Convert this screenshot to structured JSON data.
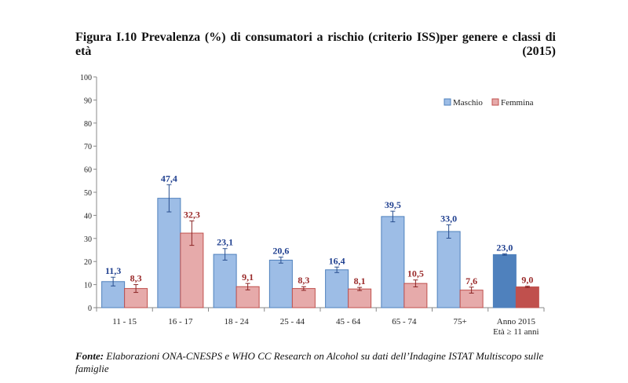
{
  "title": {
    "line1": "Figura I.10 Prevalenza (%) di consumatori a rischio (criterio ISS)per genere e classi di",
    "line2_left": "età",
    "line2_right": "(2015)"
  },
  "source": {
    "label": "Fonte:",
    "text": " Elaborazioni ONA-CNESPS e WHO CC Research on Alcohol su dati dell’Indagine ISTAT Multiscopo sulle famiglie"
  },
  "colors": {
    "maschio": "#9dbde6",
    "maschio_total": "#4f81bd",
    "maschio_label": "#1f3f8f",
    "femmina": "#e6aaaa",
    "femmina_total": "#c0504d",
    "femmina_label": "#9a2a2a"
  },
  "chart_data": {
    "type": "bar",
    "categories": [
      "11 - 15",
      "16 - 17",
      "18 - 24",
      "25 - 44",
      "45 - 64",
      "65 - 74",
      "75+",
      "Anno 2015\nEtà ≥ 11 anni"
    ],
    "series": [
      {
        "name": "Maschio",
        "values": [
          11.3,
          47.4,
          23.1,
          20.6,
          16.4,
          39.5,
          33.0,
          23.0
        ],
        "labels": [
          "11,3",
          "47,4",
          "23,1",
          "20,6",
          "16,4",
          "39,5",
          "33,0",
          "23,0"
        ],
        "err_low": [
          9.4,
          41.5,
          20.6,
          19.3,
          15.2,
          37.2,
          30.1,
          22.7
        ],
        "err_high": [
          13.2,
          53.3,
          25.6,
          21.9,
          17.6,
          41.8,
          35.9,
          23.3
        ]
      },
      {
        "name": "Femmina",
        "values": [
          8.3,
          32.3,
          9.1,
          8.3,
          8.1,
          10.5,
          7.6,
          9.0
        ],
        "labels": [
          "8,3",
          "32,3",
          "9,1",
          "8,3",
          "8,1",
          "10,5",
          "7,6",
          "9,0"
        ],
        "err_low": [
          6.6,
          27.0,
          7.7,
          7.5,
          7.4,
          9.0,
          6.3,
          8.7
        ],
        "err_high": [
          10.0,
          37.6,
          10.5,
          9.1,
          8.8,
          12.0,
          8.9,
          9.3
        ]
      }
    ],
    "ylim": [
      0,
      100
    ],
    "yticks": [
      0,
      10,
      20,
      30,
      40,
      50,
      60,
      70,
      80,
      90,
      100
    ],
    "grid": false,
    "legend": "top-right",
    "highlight_last_category": true
  }
}
